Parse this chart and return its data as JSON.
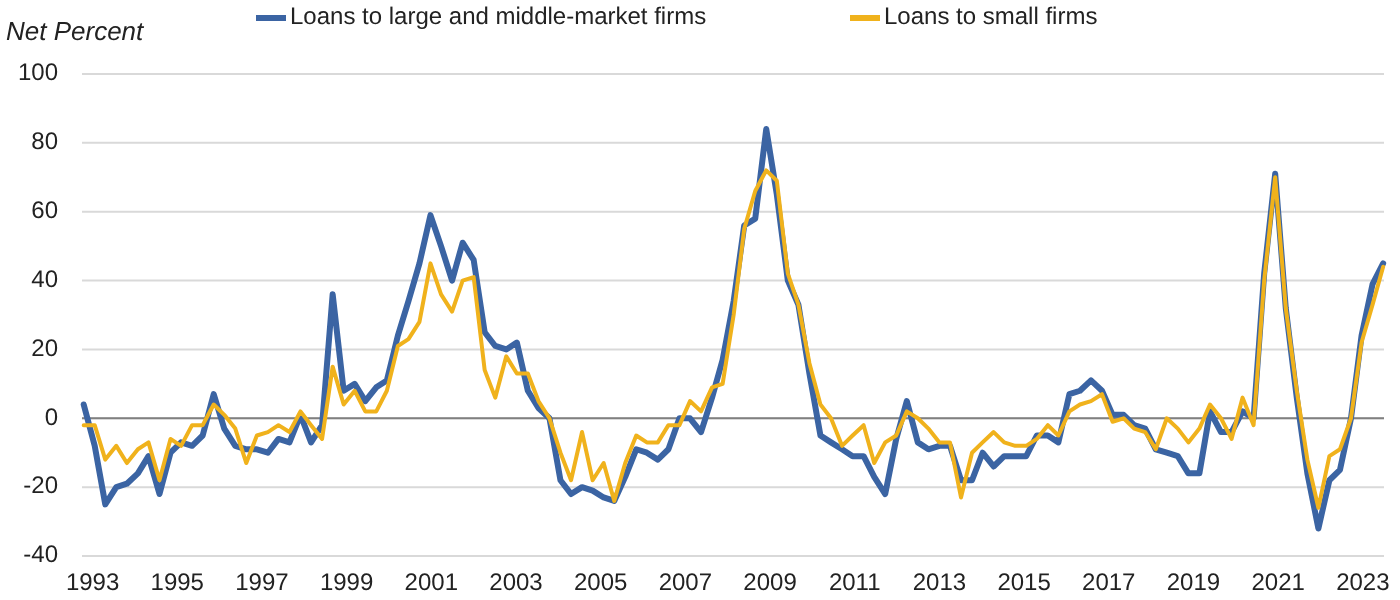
{
  "chart_data": {
    "type": "line",
    "ylabel": "Net Percent",
    "legend": "top",
    "grid": "y",
    "line_style": "solid",
    "marker": "none",
    "x": [
      1992.79,
      1993.05,
      1993.3,
      1993.56,
      1993.81,
      1994.07,
      1994.32,
      1994.58,
      1994.84,
      1995.09,
      1995.35,
      1995.6,
      1995.86,
      1996.11,
      1996.37,
      1996.63,
      1996.88,
      1997.14,
      1997.39,
      1997.65,
      1997.91,
      1998.16,
      1998.42,
      1998.67,
      1998.93,
      1999.19,
      1999.44,
      1999.7,
      1999.95,
      2000.21,
      2000.46,
      2000.72,
      2000.98,
      2001.23,
      2001.49,
      2001.74,
      2002.0,
      2002.26,
      2002.51,
      2002.77,
      2003.02,
      2003.28,
      2003.53,
      2003.79,
      2004.05,
      2004.3,
      2004.56,
      2004.81,
      2005.07,
      2005.32,
      2005.58,
      2005.84,
      2006.09,
      2006.35,
      2006.6,
      2006.86,
      2007.11,
      2007.37,
      2007.63,
      2007.88,
      2008.14,
      2008.39,
      2008.65,
      2008.91,
      2009.16,
      2009.42,
      2009.67,
      2009.93,
      2010.19,
      2010.44,
      2010.7,
      2010.95,
      2011.21,
      2011.46,
      2011.72,
      2011.98,
      2012.23,
      2012.49,
      2012.74,
      2013.0,
      2013.25,
      2013.51,
      2013.77,
      2014.02,
      2014.28,
      2014.53,
      2014.79,
      2015.05,
      2015.3,
      2015.56,
      2015.81,
      2016.07,
      2016.32,
      2016.58,
      2016.84,
      2017.09,
      2017.35,
      2017.6,
      2017.86,
      2018.11,
      2018.37,
      2018.63,
      2018.88,
      2019.14,
      2019.39,
      2019.65,
      2019.9,
      2020.16,
      2020.42,
      2020.67,
      2020.93,
      2021.18,
      2021.44,
      2021.69,
      2021.95,
      2022.21,
      2022.46,
      2022.72,
      2022.97,
      2023.23,
      2023.48
    ],
    "series": [
      {
        "name": "Loans to large and middle-market firms",
        "color": "#3b64a3",
        "values": [
          4,
          -8,
          -25,
          -20,
          -19,
          -16,
          -11,
          -22,
          -10,
          -7,
          -8,
          -5,
          7,
          -3,
          -8,
          -9,
          -9,
          -10,
          -6,
          -7,
          1,
          -7,
          -2,
          36,
          8,
          10,
          5,
          9,
          11,
          24,
          34,
          45,
          59,
          50,
          40,
          51,
          46,
          25,
          21,
          20,
          22,
          8,
          3,
          0,
          -18,
          -22,
          -20,
          -21,
          -23,
          -24,
          -17,
          -9,
          -10,
          -12,
          -9,
          0,
          0,
          -4,
          6,
          17,
          34,
          56,
          58,
          84,
          65,
          40,
          33,
          13,
          -5,
          -7,
          -9,
          -11,
          -11,
          -17,
          -22,
          -6,
          5,
          -7,
          -9,
          -8,
          -8,
          -18,
          -18,
          -10,
          -14,
          -11,
          -11,
          -11,
          -5,
          -5,
          -7,
          7,
          8,
          11,
          8,
          1,
          1,
          -2,
          -3,
          -9,
          -10,
          -11,
          -16,
          -16,
          2,
          -4,
          -4,
          2,
          0,
          42,
          71,
          32,
          6,
          -16,
          -32,
          -18,
          -15,
          0,
          24,
          39,
          45
        ]
      },
      {
        "name": "Loans to small firms",
        "color": "#f0b21c",
        "values": [
          -2,
          -2,
          -12,
          -8,
          -13,
          -9,
          -7,
          -18,
          -6,
          -8,
          -2,
          -2,
          4,
          1,
          -3,
          -13,
          -5,
          -4,
          -2,
          -4,
          2,
          -2,
          -6,
          15,
          4,
          8,
          2,
          2,
          8,
          21,
          23,
          28,
          45,
          36,
          31,
          40,
          41,
          14,
          6,
          18,
          13,
          13,
          5,
          0,
          -10,
          -18,
          -4,
          -18,
          -13,
          -24,
          -13,
          -5,
          -7,
          -7,
          -2,
          -2,
          5,
          2,
          9,
          10,
          30,
          55,
          66,
          72,
          69,
          42,
          33,
          16,
          4,
          0,
          -8,
          -5,
          -2,
          -13,
          -7,
          -5,
          2,
          0,
          -3,
          -7,
          -7,
          -23,
          -10,
          -7,
          -4,
          -7,
          -8,
          -8,
          -6,
          -2,
          -5,
          2,
          4,
          5,
          7,
          -1,
          0,
          -3,
          -4,
          -9,
          0,
          -3,
          -7,
          -3,
          4,
          0,
          -6,
          6,
          -2,
          40,
          70,
          32,
          8,
          -12,
          -26,
          -11,
          -9,
          0,
          22,
          33,
          44
        ]
      }
    ],
    "xlim": [
      1992.75,
      2023.5
    ],
    "xticks": [
      1993,
      1995,
      1997,
      1999,
      2001,
      2003,
      2005,
      2007,
      2009,
      2011,
      2013,
      2015,
      2017,
      2019,
      2021,
      2023
    ],
    "ylim": [
      -40,
      100
    ],
    "yticks": [
      -40,
      -20,
      0,
      20,
      40,
      60,
      80,
      100
    ]
  }
}
